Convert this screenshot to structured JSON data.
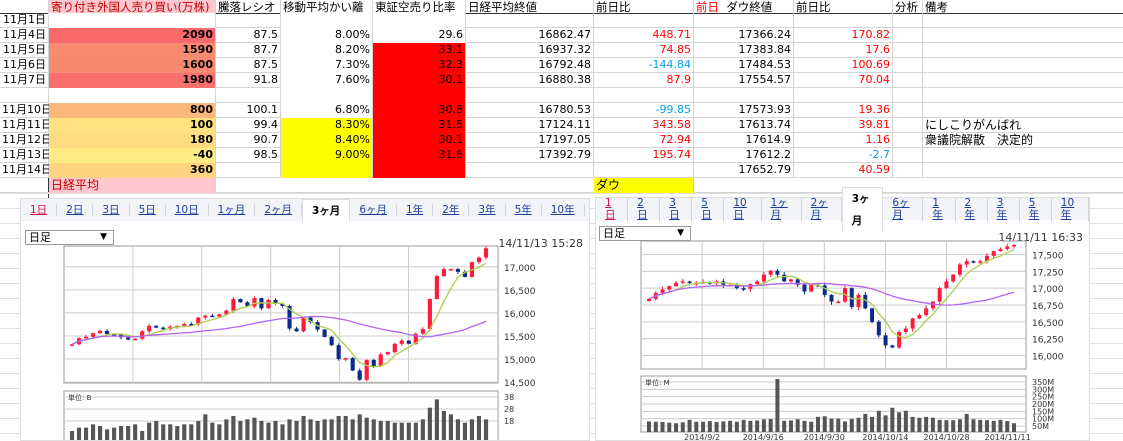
{
  "sheet": {
    "headers": {
      "foreign": "寄り付き外国人売り買い(万株)",
      "adr": "騰落レシオ",
      "ma_dev": "移動平均かい離",
      "short_ratio": "東証空売り比率",
      "nikkei": "日経平均終値",
      "nikkei_chg": "前日比",
      "prev_day": "前日",
      "dow": "ダウ終値",
      "dow_chg": "前日比",
      "analysis": "分析",
      "notes": "備考"
    },
    "rows": [
      {
        "date": "11月1日",
        "foreign": "",
        "adr": "",
        "ma_dev": "",
        "short_ratio": "",
        "nikkei": "",
        "nikkei_chg": "",
        "dow": "",
        "dow_chg": "",
        "notes": "",
        "fbg": "#ffffff",
        "mabg": "#ffffff",
        "srbg": "#ffffff",
        "nc": "red",
        "dc": "red"
      },
      {
        "date": "11月4日",
        "foreign": "2090",
        "adr": "87.5",
        "ma_dev": "8.00%",
        "short_ratio": "29.6",
        "nikkei": "16862.47",
        "nikkei_chg": "448.71",
        "dow": "17366.24",
        "dow_chg": "170.82",
        "notes": "",
        "fbg": "#f8696b",
        "mabg": "#ffffff",
        "srbg": "#ffffff",
        "nc": "red",
        "dc": "red"
      },
      {
        "date": "11月5日",
        "foreign": "1590",
        "adr": "87.7",
        "ma_dev": "8.20%",
        "short_ratio": "33.1",
        "nikkei": "16937.32",
        "nikkei_chg": "74.85",
        "dow": "17383.84",
        "dow_chg": "17.6",
        "notes": "",
        "fbg": "#fa8a72",
        "mabg": "#ffffff",
        "srbg": "#ff0000",
        "nc": "red",
        "dc": "red"
      },
      {
        "date": "11月6日",
        "foreign": "1600",
        "adr": "87.5",
        "ma_dev": "7.30%",
        "short_ratio": "32.3",
        "nikkei": "16792.48",
        "nikkei_chg": "-144.84",
        "dow": "17484.53",
        "dow_chg": "100.69",
        "notes": "",
        "fbg": "#fa8972",
        "mabg": "#ffffff",
        "srbg": "#ff0000",
        "nc": "blue",
        "dc": "red"
      },
      {
        "date": "11月7日",
        "foreign": "1980",
        "adr": "91.8",
        "ma_dev": "7.60%",
        "short_ratio": "30.1",
        "nikkei": "16880.38",
        "nikkei_chg": "87.9",
        "dow": "17554.57",
        "dow_chg": "70.04",
        "notes": "",
        "fbg": "#f9706c",
        "mabg": "#ffffff",
        "srbg": "#ff0000",
        "nc": "red",
        "dc": "red"
      },
      {
        "date": "",
        "foreign": "",
        "adr": "",
        "ma_dev": "",
        "short_ratio": "",
        "nikkei": "",
        "nikkei_chg": "",
        "dow": "",
        "dow_chg": "",
        "notes": "",
        "fbg": "#ffffff",
        "mabg": "#ffffff",
        "srbg": "#ff0000",
        "nc": "red",
        "dc": "red"
      },
      {
        "date": "11月10日",
        "foreign": "800",
        "adr": "100.1",
        "ma_dev": "6.80%",
        "short_ratio": "30.8",
        "nikkei": "16780.53",
        "nikkei_chg": "-99.85",
        "dow": "17573.93",
        "dow_chg": "19.36",
        "notes": "",
        "fbg": "#fcb77a",
        "mabg": "#ffffff",
        "srbg": "#ff0000",
        "nc": "blue",
        "dc": "red"
      },
      {
        "date": "11月11日",
        "foreign": "100",
        "adr": "99.4",
        "ma_dev": "8.30%",
        "short_ratio": "31.5",
        "nikkei": "17124.11",
        "nikkei_chg": "343.58",
        "dow": "17613.74",
        "dow_chg": "39.81",
        "notes": "にしこりがんばれ",
        "fbg": "#fee282",
        "mabg": "#ffff00",
        "srbg": "#ff0000",
        "nc": "red",
        "dc": "red"
      },
      {
        "date": "11月12日",
        "foreign": "180",
        "adr": "90.7",
        "ma_dev": "8.40%",
        "short_ratio": "30.1",
        "nikkei": "17197.05",
        "nikkei_chg": "72.94",
        "dow": "17614.9",
        "dow_chg": "1.16",
        "notes": "衆議院解散　決定的",
        "fbg": "#fedc81",
        "mabg": "#ffff00",
        "srbg": "#ff0000",
        "nc": "red",
        "dc": "red"
      },
      {
        "date": "11月13日",
        "foreign": "-40",
        "adr": "98.5",
        "ma_dev": "9.00%",
        "short_ratio": "31.6",
        "nikkei": "17392.79",
        "nikkei_chg": "195.74",
        "dow": "17612.2",
        "dow_chg": "-2.7",
        "notes": "",
        "fbg": "#ffeb84",
        "mabg": "#ffff00",
        "srbg": "#ff0000",
        "nc": "red",
        "dc": "blue"
      },
      {
        "date": "11月14日",
        "foreign": "360",
        "adr": "",
        "ma_dev": "",
        "short_ratio": "",
        "nikkei": "",
        "nikkei_chg": "",
        "dow": "17652.79",
        "dow_chg": "40.59",
        "notes": "",
        "fbg": "#fed480",
        "mabg": "#ffff00",
        "srbg": "#ff0000",
        "nc": "red",
        "dc": "red"
      }
    ],
    "nikkei_label": "日経平均",
    "dow_label": "ダウ"
  },
  "tabs": [
    "1日",
    "2日",
    "3日",
    "5日",
    "10日",
    "1ヶ月",
    "2ヶ月",
    "3ヶ月",
    "6ヶ月",
    "1年",
    "2年",
    "3年",
    "5年",
    "10年"
  ],
  "active_tab": "3ヶ月",
  "colors": {
    "up": "#ff1a3c",
    "down": "#0a2a8c",
    "ma_short": "#a8d04a",
    "ma_long": "#b464f0",
    "volume": "#555555"
  },
  "charts": [
    {
      "select": "日足",
      "timestamp": "14/11/13 15:28",
      "volume_unit": "単位: B",
      "y_ticks": [
        17000,
        16500,
        16000,
        15500,
        15000,
        14500
      ],
      "y_range": [
        14480,
        17450
      ],
      "vol_ticks": [
        "38",
        "28",
        "18"
      ],
      "vol_range": [
        5,
        41
      ],
      "x_labels": [],
      "closes": [
        15320,
        15450,
        15480,
        15560,
        15610,
        15540,
        15530,
        15470,
        15420,
        15440,
        15600,
        15720,
        15680,
        15650,
        15700,
        15720,
        15760,
        15750,
        15900,
        15940,
        15920,
        15970,
        16050,
        16300,
        16230,
        16140,
        16320,
        16100,
        16280,
        16200,
        16150,
        15660,
        15600,
        15900,
        15800,
        15640,
        15480,
        15300,
        15000,
        15020,
        14750,
        14550,
        14980,
        14850,
        15100,
        15150,
        15330,
        15400,
        15330,
        15550,
        15650,
        16300,
        16800,
        16950,
        16950,
        16890,
        16780,
        17100,
        17200,
        17400
      ],
      "volumes": [
        17,
        19,
        19,
        21,
        20,
        18,
        19,
        20,
        20,
        21,
        17,
        22,
        23,
        21,
        21,
        20,
        21,
        21,
        23,
        27,
        22,
        21,
        24,
        26,
        23,
        24,
        25,
        23,
        22,
        23,
        21,
        24,
        23,
        26,
        24,
        23,
        24,
        24,
        26,
        26,
        24,
        27,
        25,
        24,
        23,
        23,
        22,
        22,
        22,
        22,
        24,
        31,
        36,
        29,
        27,
        24,
        22,
        24,
        26,
        24
      ]
    },
    {
      "select": "日足",
      "timestamp": "14/11/11 16:33",
      "volume_unit": "単位: M",
      "y_ticks": [
        17500,
        17250,
        17000,
        16750,
        16500,
        16250,
        16000
      ],
      "y_range": [
        15800,
        17700
      ],
      "vol_ticks": [
        "350M",
        "300M",
        "250M",
        "200M",
        "150M",
        "100M",
        "50M"
      ],
      "vol_range": [
        0,
        370
      ],
      "x_labels": [
        "2014/9/2",
        "2014/9/16",
        "2014/9/30",
        "2014/10/14",
        "2014/10/28",
        "2014/11/11"
      ],
      "closes": [
        16840,
        16930,
        16980,
        17030,
        17080,
        17100,
        17080,
        17080,
        17090,
        17070,
        17100,
        17050,
        17050,
        17000,
        16990,
        17060,
        17100,
        17200,
        17260,
        17200,
        17100,
        17130,
        17050,
        16950,
        17050,
        17040,
        16900,
        16800,
        16800,
        17000,
        16720,
        16900,
        16700,
        16500,
        16300,
        16150,
        16120,
        16350,
        16400,
        16550,
        16600,
        16700,
        16800,
        17000,
        17100,
        17200,
        17350,
        17400,
        17380,
        17400,
        17480,
        17550,
        17580,
        17620,
        17640
      ],
      "volumes": [
        70,
        68,
        66,
        62,
        58,
        64,
        80,
        68,
        68,
        72,
        66,
        70,
        74,
        68,
        80,
        74,
        76,
        84,
        86,
        350,
        74,
        76,
        84,
        74,
        68,
        100,
        104,
        88,
        88,
        70,
        86,
        94,
        120,
        100,
        140,
        110,
        160,
        130,
        140,
        100,
        94,
        100,
        95,
        80,
        78,
        78,
        84,
        120,
        84,
        80,
        78,
        74,
        80,
        72,
        58
      ]
    }
  ]
}
